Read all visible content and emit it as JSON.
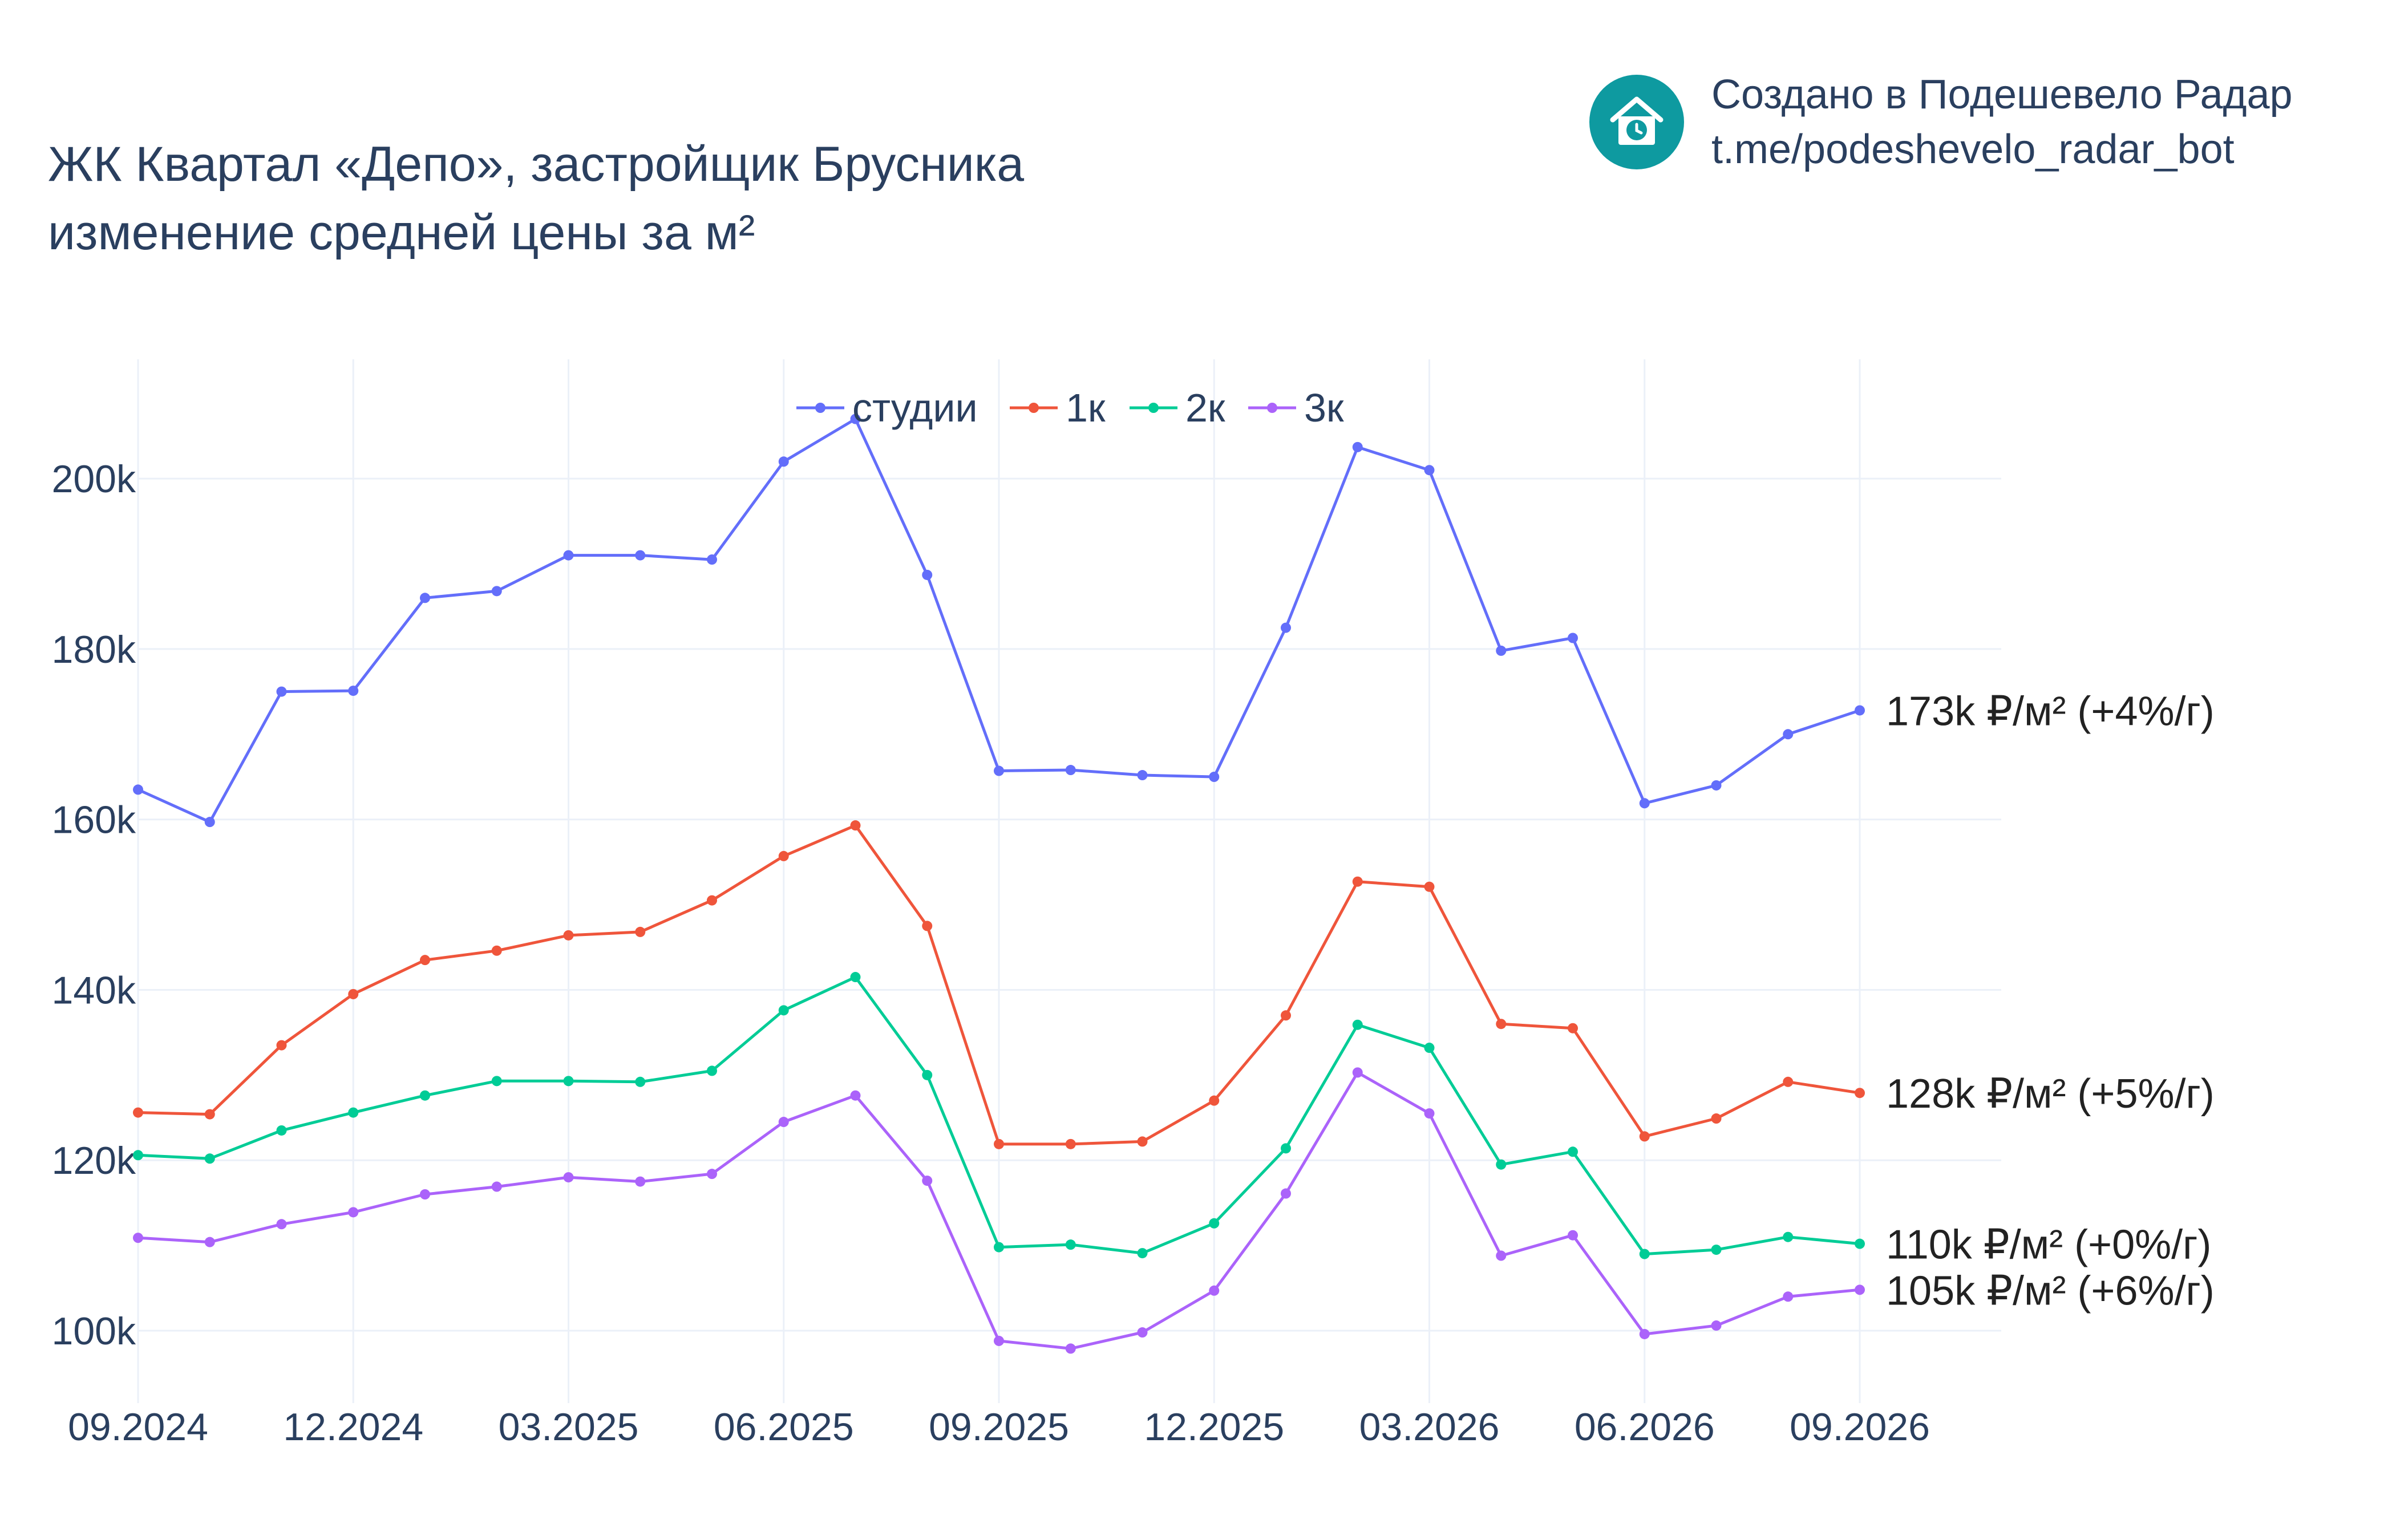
{
  "title": {
    "line1": "ЖК Квартал «Депо», застройщик Брусника",
    "line2": "изменение средней цены за м²"
  },
  "brand": {
    "line1": "Создано в Подешевело Радар",
    "line2": "t.me/podeshevelo_radar_bot",
    "logo_icon": "house-clock-icon",
    "logo_color": "#0e9aa0"
  },
  "chart_data": {
    "type": "line",
    "x": [
      "09.2024",
      "10.2024",
      "11.2024",
      "12.2024",
      "01.2025",
      "02.2025",
      "03.2025",
      "04.2025",
      "05.2025",
      "06.2025",
      "07.2025",
      "08.2025",
      "09.2025",
      "10.2025",
      "11.2025",
      "12.2025",
      "01.2026",
      "02.2026",
      "03.2026",
      "04.2026",
      "05.2026",
      "06.2026",
      "07.2026",
      "08.2026",
      "09.2026"
    ],
    "x_tick_labels": [
      "09.2024",
      "12.2024",
      "03.2025",
      "06.2025",
      "09.2025",
      "12.2025",
      "03.2026",
      "06.2026",
      "09.2026"
    ],
    "y_tick_values": [
      100000,
      120000,
      140000,
      160000,
      180000,
      200000
    ],
    "y_tick_labels": [
      "100k",
      "120k",
      "140k",
      "160k",
      "180k",
      "200k"
    ],
    "ylim": [
      91500,
      214000
    ],
    "grid": true,
    "legend_position": "top-center",
    "series": [
      {
        "name": "студии",
        "color": "#636efa",
        "end_label": "173k ₽/м² (+4%/г)",
        "values": [
          163500,
          159700,
          175000,
          175100,
          186000,
          186800,
          191000,
          191000,
          190500,
          202000,
          207000,
          188700,
          165700,
          165800,
          165200,
          165000,
          182500,
          203700,
          201000,
          179800,
          181300,
          161900,
          164000,
          170000,
          172800
        ]
      },
      {
        "name": "1к",
        "color": "#ef553b",
        "end_label": "128k ₽/м² (+5%/г)",
        "values": [
          125600,
          125400,
          133500,
          139500,
          143500,
          144600,
          146400,
          146800,
          150500,
          155700,
          159300,
          147500,
          121900,
          121900,
          122200,
          127000,
          137000,
          152700,
          152100,
          136000,
          135500,
          122800,
          124900,
          129200,
          127900
        ]
      },
      {
        "name": "2к",
        "color": "#00cc96",
        "end_label": "110k ₽/м² (+0%/г)",
        "values": [
          120600,
          120200,
          123500,
          125600,
          127600,
          129300,
          129300,
          129200,
          130500,
          137600,
          141500,
          130000,
          109800,
          110100,
          109100,
          112600,
          121400,
          135900,
          133200,
          119500,
          121000,
          109000,
          109500,
          111000,
          110200
        ]
      },
      {
        "name": "3к",
        "color": "#ab63fa",
        "end_label": "105k ₽/м² (+6%/г)",
        "values": [
          110900,
          110400,
          112500,
          113900,
          116000,
          116900,
          118000,
          117500,
          118400,
          124500,
          127600,
          117600,
          98800,
          97900,
          99800,
          104700,
          116100,
          130300,
          125500,
          108800,
          111200,
          99600,
          100600,
          104000,
          104800
        ]
      }
    ]
  }
}
